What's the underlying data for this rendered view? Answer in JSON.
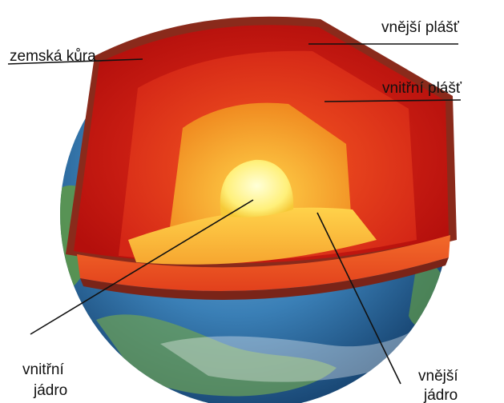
{
  "labels": {
    "crust": "zemská kůra",
    "outer_mantle": "vnější plášť",
    "inner_mantle": "vnitřní plášť",
    "inner_core_line1": "vnitřní",
    "inner_core_line2": "jádro",
    "outer_core_line1": "vnější",
    "outer_core_line2": "jádro"
  },
  "colors": {
    "ocean": "#2f6fa3",
    "land": "#4d8a3e",
    "crust_edge": "#9c2b1c",
    "outer_mantle": "#c8150f",
    "inner_mantle": "#e0301a",
    "outer_core": "#f0a52a",
    "inner_core": "#fff39a",
    "leader_line": "#111111"
  }
}
